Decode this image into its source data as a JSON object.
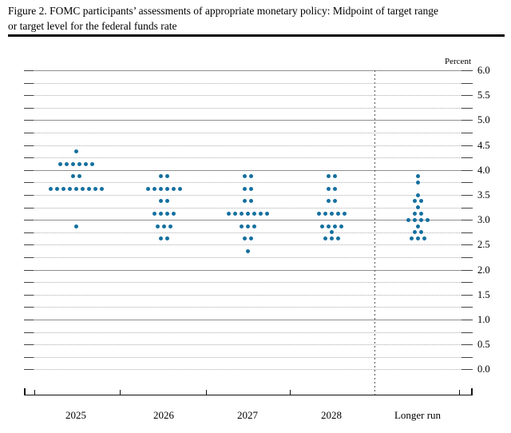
{
  "figure": {
    "title_line1": "Figure 2. FOMC participants’ assessments of appropriate monetary policy: Midpoint of target range",
    "title_line2": "or target level for the federal funds rate"
  },
  "chart_data": {
    "type": "scatter",
    "title": "Figure 2. FOMC participants’ assessments of appropriate monetary policy: Midpoint of target range or target level for the federal funds rate",
    "xlabel": "",
    "ylabel": "Percent",
    "ylim": [
      0.0,
      6.0
    ],
    "gridline_step": 0.25,
    "solid_gridlines": [
      6.0,
      5.0,
      4.0,
      3.0,
      2.0,
      1.0
    ],
    "ytick_labels": [
      "6.0",
      "5.5",
      "5.0",
      "4.5",
      "4.0",
      "3.5",
      "3.0",
      "2.5",
      "2.0",
      "1.5",
      "1.0",
      "0.5",
      "0.0"
    ],
    "ytick_values": [
      6.0,
      5.5,
      5.0,
      4.5,
      4.0,
      3.5,
      3.0,
      2.5,
      2.0,
      1.5,
      1.0,
      0.5,
      0.0
    ],
    "grid": "dotted-quarters",
    "legend": "none",
    "dot_color": "#15709f",
    "categories": [
      "2025",
      "2026",
      "2027",
      "2028",
      "Longer run"
    ],
    "separator_before_category": "Longer run",
    "series": [
      {
        "category": "2025",
        "dots": [
          {
            "rate": 4.375,
            "count": 1
          },
          {
            "rate": 4.125,
            "count": 6
          },
          {
            "rate": 3.875,
            "count": 2
          },
          {
            "rate": 3.625,
            "count": 9
          },
          {
            "rate": 2.875,
            "count": 1
          }
        ]
      },
      {
        "category": "2026",
        "dots": [
          {
            "rate": 3.875,
            "count": 2
          },
          {
            "rate": 3.625,
            "count": 6
          },
          {
            "rate": 3.375,
            "count": 2
          },
          {
            "rate": 3.125,
            "count": 4
          },
          {
            "rate": 2.875,
            "count": 3
          },
          {
            "rate": 2.625,
            "count": 2
          }
        ]
      },
      {
        "category": "2027",
        "dots": [
          {
            "rate": 3.875,
            "count": 2
          },
          {
            "rate": 3.625,
            "count": 2
          },
          {
            "rate": 3.375,
            "count": 2
          },
          {
            "rate": 3.125,
            "count": 7
          },
          {
            "rate": 2.875,
            "count": 3
          },
          {
            "rate": 2.625,
            "count": 2
          },
          {
            "rate": 2.375,
            "count": 1
          }
        ]
      },
      {
        "category": "2028",
        "dots": [
          {
            "rate": 3.875,
            "count": 2
          },
          {
            "rate": 3.625,
            "count": 2
          },
          {
            "rate": 3.375,
            "count": 2
          },
          {
            "rate": 3.125,
            "count": 5
          },
          {
            "rate": 2.875,
            "count": 4
          },
          {
            "rate": 2.75,
            "count": 1
          },
          {
            "rate": 2.625,
            "count": 3
          }
        ]
      },
      {
        "category": "Longer run",
        "dots": [
          {
            "rate": 3.875,
            "count": 1
          },
          {
            "rate": 3.75,
            "count": 1
          },
          {
            "rate": 3.5,
            "count": 1
          },
          {
            "rate": 3.375,
            "count": 2
          },
          {
            "rate": 3.25,
            "count": 1
          },
          {
            "rate": 3.125,
            "count": 2
          },
          {
            "rate": 3.0,
            "count": 4
          },
          {
            "rate": 2.875,
            "count": 1
          },
          {
            "rate": 2.75,
            "count": 2
          },
          {
            "rate": 2.625,
            "count": 3
          }
        ]
      }
    ]
  }
}
